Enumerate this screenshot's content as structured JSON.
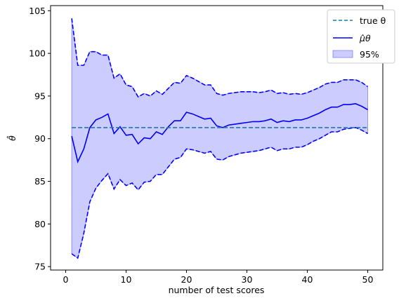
{
  "chart_data": {
    "type": "line",
    "xlabel": "number of test scores",
    "ylabel": "θ̂",
    "xlim": [
      -2.5,
      52.5
    ],
    "ylim": [
      74.6,
      105.6
    ],
    "xticks": [
      0,
      10,
      20,
      30,
      40,
      50
    ],
    "yticks": [
      75,
      80,
      85,
      90,
      95,
      100,
      105
    ],
    "grid": false,
    "legend_position": "top-right",
    "x": [
      1,
      2,
      3,
      4,
      5,
      6,
      7,
      8,
      9,
      10,
      11,
      12,
      13,
      14,
      15,
      16,
      17,
      18,
      19,
      20,
      21,
      22,
      23,
      24,
      25,
      26,
      27,
      28,
      29,
      30,
      31,
      32,
      33,
      34,
      35,
      36,
      37,
      38,
      39,
      40,
      41,
      42,
      43,
      44,
      45,
      46,
      47,
      48,
      49,
      50
    ],
    "true_theta": {
      "name": "true θ",
      "value": 91.3,
      "color": "#1f77b4"
    },
    "mean": {
      "name": "μ̂θ",
      "color": "#0000ff",
      "values": [
        90.3,
        87.3,
        88.8,
        91.3,
        92.2,
        92.5,
        92.9,
        90.6,
        91.4,
        90.4,
        90.5,
        89.4,
        90.1,
        90.0,
        90.8,
        90.5,
        91.4,
        92.1,
        92.1,
        93.1,
        92.9,
        92.6,
        92.3,
        92.4,
        91.5,
        91.3,
        91.6,
        91.7,
        91.8,
        91.9,
        92.0,
        92.0,
        92.1,
        92.3,
        91.9,
        92.1,
        92.0,
        92.2,
        92.2,
        92.4,
        92.7,
        93.0,
        93.4,
        93.7,
        93.7,
        94.0,
        94.0,
        94.1,
        93.8,
        93.4
      ]
    },
    "upper": [
      104.1,
      98.6,
      98.6,
      100.2,
      100.2,
      99.8,
      99.8,
      97.1,
      97.6,
      96.3,
      96.1,
      94.9,
      95.3,
      95.0,
      95.6,
      95.2,
      95.9,
      96.6,
      96.5,
      97.4,
      97.1,
      96.7,
      96.3,
      96.3,
      95.3,
      95.1,
      95.3,
      95.4,
      95.5,
      95.5,
      95.5,
      95.4,
      95.5,
      95.7,
      95.3,
      95.4,
      95.2,
      95.3,
      95.2,
      95.4,
      95.7,
      96.0,
      96.4,
      96.6,
      96.6,
      96.9,
      96.9,
      96.9,
      96.6,
      96.1
    ],
    "lower": [
      76.5,
      76.0,
      78.9,
      82.6,
      84.2,
      85.1,
      85.9,
      84.1,
      85.2,
      84.5,
      84.8,
      84.0,
      84.9,
      85.0,
      85.8,
      85.8,
      86.7,
      87.6,
      87.8,
      88.8,
      88.7,
      88.5,
      88.3,
      88.5,
      87.6,
      87.5,
      87.9,
      88.1,
      88.3,
      88.4,
      88.5,
      88.6,
      88.8,
      89.0,
      88.6,
      88.8,
      88.8,
      89.0,
      89.0,
      89.3,
      89.7,
      90.0,
      90.4,
      90.8,
      90.8,
      91.1,
      91.2,
      91.3,
      91.0,
      90.6
    ],
    "band": {
      "name": "95%",
      "fill": "#ccccff",
      "edge": "#8080ff"
    }
  }
}
